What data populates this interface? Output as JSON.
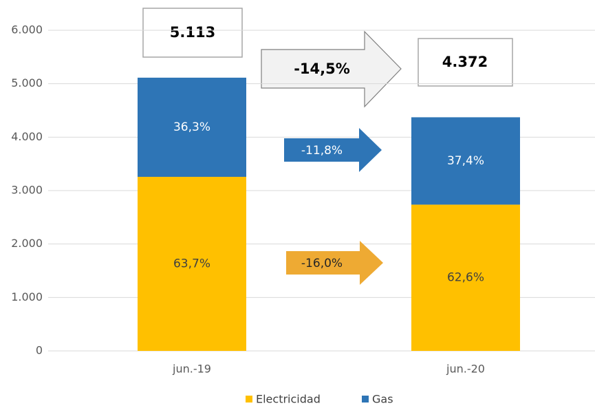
{
  "chart_data": {
    "type": "stacked_bar",
    "categories": [
      "jun.-19",
      "jun.-20"
    ],
    "series": [
      {
        "name": "Electricidad",
        "color": "#ffc000",
        "values": [
          3257,
          2737
        ],
        "share_labels": [
          "63,7%",
          "62,6%"
        ],
        "label_color": "#404040",
        "change": {
          "value": -16.0,
          "label": "-16,0%"
        },
        "change_color": "#eeaa33",
        "change_text_color": "#262626"
      },
      {
        "name": "Gas",
        "color": "#2e75b6",
        "values": [
          1856,
          1635
        ],
        "share_labels": [
          "36,3%",
          "37,4%"
        ],
        "label_color": "#ffffff",
        "change": {
          "value": -11.8,
          "label": "-11,8%"
        },
        "change_color": "#2e75b6",
        "change_text_color": "#ffffff"
      }
    ],
    "totals": [
      {
        "value": 5113,
        "label": "5.113"
      },
      {
        "value": 4372,
        "label": "4.372"
      }
    ],
    "total_change": {
      "value": -14.5,
      "label": "-14,5%"
    },
    "ylim": [
      0,
      6000
    ],
    "yticks": [
      0,
      {
        "value": 1000,
        "label": "1.000"
      },
      {
        "value": 2000,
        "label": "2.000"
      },
      {
        "value": 3000,
        "label": "3.000"
      },
      {
        "value": 4000,
        "label": "4.000"
      },
      {
        "value": 5000,
        "label": "5.000"
      },
      {
        "value": 6000,
        "label": "6.000"
      }
    ],
    "grid": true,
    "legend": "bottom"
  }
}
